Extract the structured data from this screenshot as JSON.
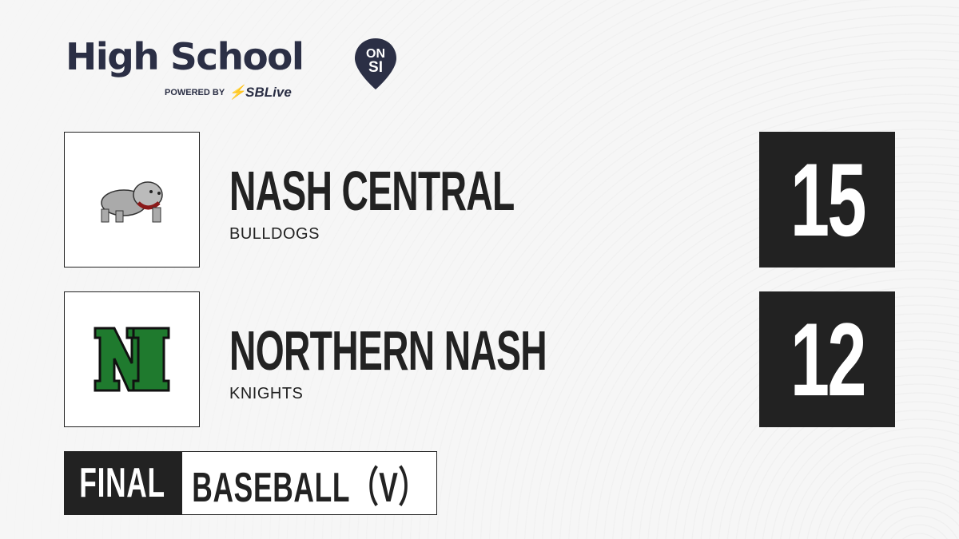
{
  "brand": {
    "title": "High School",
    "badge_top": "ON",
    "badge_bottom": "SI",
    "powered_by": "POWERED BY",
    "partner": "SBLive"
  },
  "teams": [
    {
      "name": "NASH CENTRAL",
      "mascot": "BULLDOGS",
      "score": "15",
      "logo": "bulldog-logo"
    },
    {
      "name": "NORTHERN NASH",
      "mascot": "KNIGHTS",
      "score": "12",
      "logo": "nn-monogram-logo"
    }
  ],
  "status": "FINAL",
  "sport": "BASEBALL（V）",
  "colors": {
    "brand": "#2b2f45",
    "partner_accent": "#29a8e0",
    "dark": "#222222",
    "nn_green": "#1f7a2e",
    "bulldog_red": "#8b1a1a"
  }
}
